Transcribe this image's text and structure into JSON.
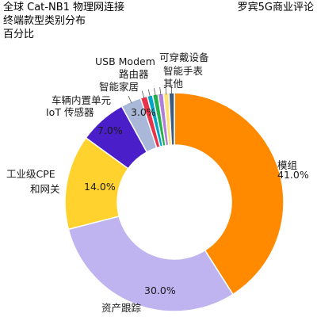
{
  "chart_data": {
    "type": "pie",
    "donut": true,
    "title_lines": [
      "全球 Cat-NB1 物理网连接",
      "终端款型类别分布",
      "百分比"
    ],
    "source": "罗宾5G商业评论",
    "slices": [
      {
        "label": "模组",
        "value": 41.0,
        "value_label": "41.0%",
        "color": "#FF8A00"
      },
      {
        "label": "资产跟踪",
        "value": 30.0,
        "value_label": "30.0%",
        "color": "#BFB3F0"
      },
      {
        "label": "工业级CPE 和网关",
        "label_lines": [
          "工业级CPE",
          "和网关"
        ],
        "value": 14.0,
        "value_label": "14.0%",
        "color": "#FFD22E"
      },
      {
        "label": "IoT 传感器",
        "value": 7.0,
        "value_label": "7.0%",
        "color": "#4A1FC9"
      },
      {
        "label": "车辆内置单元",
        "value": 3.0,
        "value_label": "3.0%",
        "color": "#A9B8D8"
      },
      {
        "label": "智能家居",
        "value": 1.0,
        "value_label": "",
        "color": "#E8344A"
      },
      {
        "label": "路由器",
        "value": 0.8,
        "value_label": "",
        "color": "#00A6C8"
      },
      {
        "label": "USB Modem",
        "value": 0.8,
        "value_label": "",
        "color": "#22B14C"
      },
      {
        "label": "可穿戴设备",
        "value": 0.8,
        "value_label": "",
        "color": "#B07FD8"
      },
      {
        "label": "智能手表",
        "value": 0.8,
        "value_label": "",
        "color": "#FFE17A"
      },
      {
        "label": "其他",
        "value": 0.8,
        "value_label": "",
        "color": "#3C5A80"
      }
    ]
  }
}
